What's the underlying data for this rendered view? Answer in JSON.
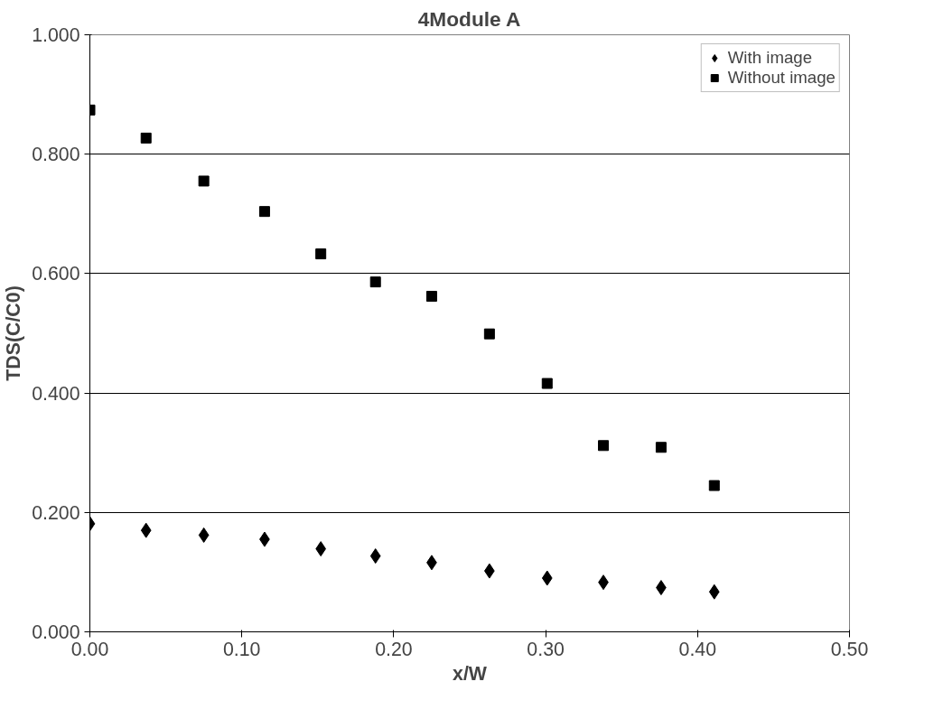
{
  "chart_data": {
    "type": "scatter",
    "title": "4Module A",
    "xlabel": "x/W",
    "ylabel": "TDS(C/C0)",
    "x": [
      0,
      0.037,
      0.075,
      0.115,
      0.152,
      0.188,
      0.225,
      0.263,
      0.301,
      0.338,
      0.376,
      0.411
    ],
    "series": [
      {
        "name": "With image",
        "color": "#000000",
        "marker": "diamond",
        "values": [
          0.181,
          0.17,
          0.162,
          0.155,
          0.139,
          0.127,
          0.116,
          0.102,
          0.09,
          0.083,
          0.074,
          0.067
        ]
      },
      {
        "name": "Without image",
        "color": "#000000",
        "marker": "square",
        "values": [
          0.874,
          0.827,
          0.755,
          0.704,
          0.633,
          0.586,
          0.562,
          0.499,
          0.416,
          0.312,
          0.309,
          0.245
        ]
      }
    ],
    "xlim": [
      0,
      0.5
    ],
    "ylim": [
      0,
      1
    ],
    "xticks": [
      {
        "value": 0,
        "label": "0.00"
      },
      {
        "value": 0.1,
        "label": "0.10"
      },
      {
        "value": 0.2,
        "label": "0.20"
      },
      {
        "value": 0.3,
        "label": "0.30"
      },
      {
        "value": 0.4,
        "label": "0.40"
      },
      {
        "value": 0.5,
        "label": "0.50"
      }
    ],
    "yticks": [
      {
        "value": 0,
        "label": "0.000"
      },
      {
        "value": 0.2,
        "label": "0.200"
      },
      {
        "value": 0.4,
        "label": "0.400"
      },
      {
        "value": 0.6,
        "label": "0.600"
      },
      {
        "value": 0.8,
        "label": "0.800"
      },
      {
        "value": 1,
        "label": "1.000"
      }
    ],
    "grid": "y",
    "legend": "top right"
  }
}
